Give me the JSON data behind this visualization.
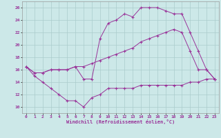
{
  "xlabel": "Windchill (Refroidissement éolien,°C)",
  "xlim": [
    -0.5,
    23.5
  ],
  "ylim": [
    9.0,
    27.0
  ],
  "xticks": [
    0,
    1,
    2,
    3,
    4,
    5,
    6,
    7,
    8,
    9,
    10,
    11,
    12,
    13,
    14,
    15,
    16,
    17,
    18,
    19,
    20,
    21,
    22,
    23
  ],
  "yticks": [
    10,
    12,
    14,
    16,
    18,
    20,
    22,
    24,
    26
  ],
  "bg_color": "#cce8e8",
  "line_color": "#993399",
  "grid_color": "#aacccc",
  "series": {
    "line1_x": [
      0,
      1,
      2,
      3,
      4,
      5,
      6,
      7,
      8,
      9,
      10,
      11,
      12,
      13,
      14,
      15,
      16,
      17,
      18,
      19,
      20,
      21,
      22,
      23
    ],
    "line1_y": [
      16.5,
      15.0,
      14.0,
      13.0,
      12.0,
      11.0,
      11.0,
      10.0,
      11.5,
      12.0,
      13.0,
      13.0,
      13.0,
      13.0,
      13.5,
      13.5,
      13.5,
      13.5,
      13.5,
      13.5,
      14.0,
      14.0,
      14.5,
      14.5
    ],
    "line2_x": [
      0,
      1,
      2,
      3,
      4,
      5,
      6,
      7,
      8,
      9,
      10,
      11,
      12,
      13,
      14,
      15,
      16,
      17,
      18,
      19,
      20,
      21,
      22,
      23
    ],
    "line2_y": [
      16.5,
      15.5,
      15.5,
      16.0,
      16.0,
      16.0,
      16.5,
      16.5,
      17.0,
      17.5,
      18.0,
      18.5,
      19.0,
      19.5,
      20.5,
      21.0,
      21.5,
      22.0,
      22.5,
      22.0,
      19.0,
      16.0,
      16.0,
      14.5
    ],
    "line3_x": [
      0,
      1,
      2,
      3,
      4,
      5,
      6,
      7,
      8,
      9,
      10,
      11,
      12,
      13,
      14,
      15,
      16,
      17,
      18,
      19,
      20,
      21,
      22,
      23
    ],
    "line3_y": [
      16.5,
      15.5,
      15.5,
      16.0,
      16.0,
      16.0,
      16.5,
      14.5,
      14.5,
      21.0,
      23.5,
      24.0,
      25.0,
      24.5,
      26.0,
      26.0,
      26.0,
      25.5,
      25.0,
      25.0,
      22.0,
      19.0,
      16.0,
      14.5
    ]
  }
}
